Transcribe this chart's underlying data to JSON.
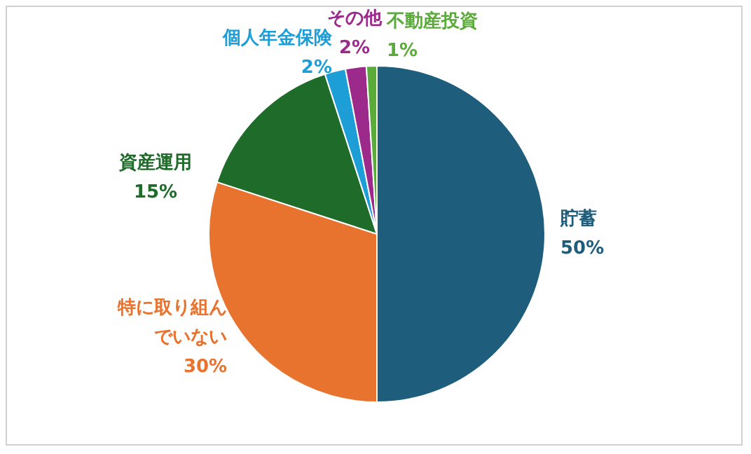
{
  "chart_data": {
    "type": "pie",
    "categories": [
      "貯蓄",
      "特に取り組んでいない",
      "資産運用",
      "個人年金保険",
      "その他",
      "不動産投資"
    ],
    "values": [
      50,
      30,
      15,
      2,
      2,
      1
    ],
    "colors": [
      "#1e5d7c",
      "#e8732f",
      "#1e6b2a",
      "#1e9ed6",
      "#9b2a8b",
      "#5aab3a"
    ],
    "value_labels": [
      "50%",
      "30%",
      "15%",
      "2%",
      "2%",
      "1%"
    ],
    "legend": false
  }
}
